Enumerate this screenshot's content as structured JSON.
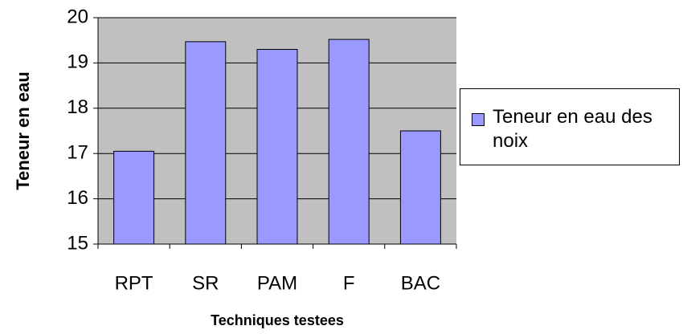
{
  "chart_data": {
    "type": "bar",
    "categories": [
      "RPT",
      "SR",
      "PAM",
      "F",
      "BAC"
    ],
    "series": [
      {
        "name": "Teneur en eau des noix",
        "color": "#9999ff",
        "values": [
          17.05,
          19.47,
          19.3,
          19.52,
          17.5
        ]
      }
    ],
    "ylim": [
      15,
      20
    ],
    "yticks": [
      15,
      16,
      17,
      18,
      19,
      20
    ],
    "grid": true,
    "y_label": "Teneur en eau",
    "x_label": "Techniques testees",
    "legend": "right"
  }
}
